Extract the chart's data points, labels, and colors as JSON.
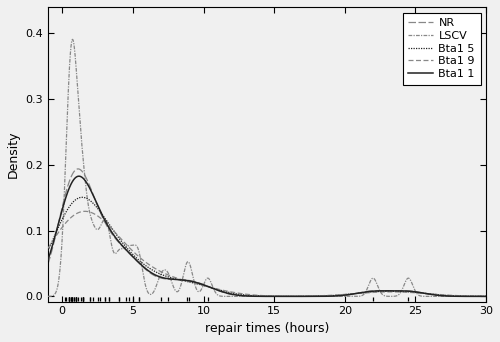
{
  "title": "",
  "xlabel": "repair times (hours)",
  "ylabel": "Density",
  "xlim": [
    -1,
    30
  ],
  "ylim": [
    -0.008,
    0.44
  ],
  "xticks": [
    0,
    5,
    10,
    15,
    20,
    25,
    30
  ],
  "yticks": [
    0.0,
    0.1,
    0.2,
    0.3,
    0.4
  ],
  "ytick_labels": [
    "0.0",
    "0.1",
    "0.2",
    "0.3",
    "0.4"
  ],
  "legend_labels": [
    "NR",
    "LSCV",
    "Bta1 5",
    "Bta1 9",
    "Bta1 1"
  ],
  "raw_data": [
    0.2,
    0.3,
    0.5,
    0.5,
    0.5,
    0.5,
    0.6,
    0.6,
    0.7,
    0.7,
    0.7,
    0.8,
    0.8,
    1.0,
    1.0,
    1.0,
    1.0,
    1.1,
    1.3,
    1.5,
    1.5,
    1.5,
    1.5,
    2.0,
    2.0,
    2.2,
    2.5,
    2.7,
    3.0,
    3.0,
    3.3,
    3.3,
    4.0,
    4.0,
    4.5,
    4.7,
    5.0,
    5.4,
    5.4,
    7.0,
    7.5,
    8.8,
    9.0,
    10.3,
    22.0,
    24.5
  ],
  "h_multipliers": {
    "NR": 1.0,
    "LSCV": 0.28,
    "Bta15": 1.5,
    "Bta19": 1.9,
    "Bta11": 1.1
  },
  "background_color": "#f0f0f0",
  "fig_width": 5.0,
  "fig_height": 3.42,
  "dpi": 100
}
